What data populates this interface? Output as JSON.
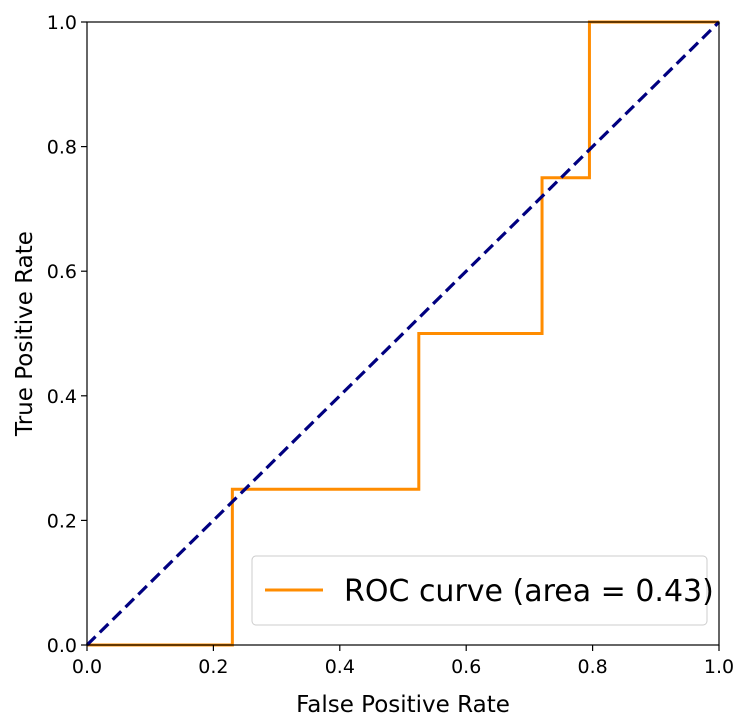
{
  "chart_data": {
    "type": "line",
    "xlabel": "False Positive Rate",
    "ylabel": "True Positive Rate",
    "xlim": [
      0.0,
      1.0
    ],
    "ylim": [
      0.0,
      1.0
    ],
    "x_ticks": [
      "0.0",
      "0.2",
      "0.4",
      "0.6",
      "0.8",
      "1.0"
    ],
    "y_ticks": [
      "0.0",
      "0.2",
      "0.4",
      "0.6",
      "0.8",
      "1.0"
    ],
    "grid": false,
    "legend_position": "lower-right",
    "series": [
      {
        "name": "ROC curve (area = 0.43)",
        "color": "#ff8c00",
        "style": "solid",
        "x": [
          0.0,
          0.23,
          0.23,
          0.525,
          0.525,
          0.72,
          0.72,
          0.795,
          0.795,
          1.0
        ],
        "y": [
          0.0,
          0.0,
          0.25,
          0.25,
          0.5,
          0.5,
          0.75,
          0.75,
          1.0,
          1.0
        ]
      },
      {
        "color": "#000080",
        "style": "dashed",
        "x": [
          0.0,
          1.0
        ],
        "y": [
          0.0,
          1.0
        ]
      }
    ]
  }
}
